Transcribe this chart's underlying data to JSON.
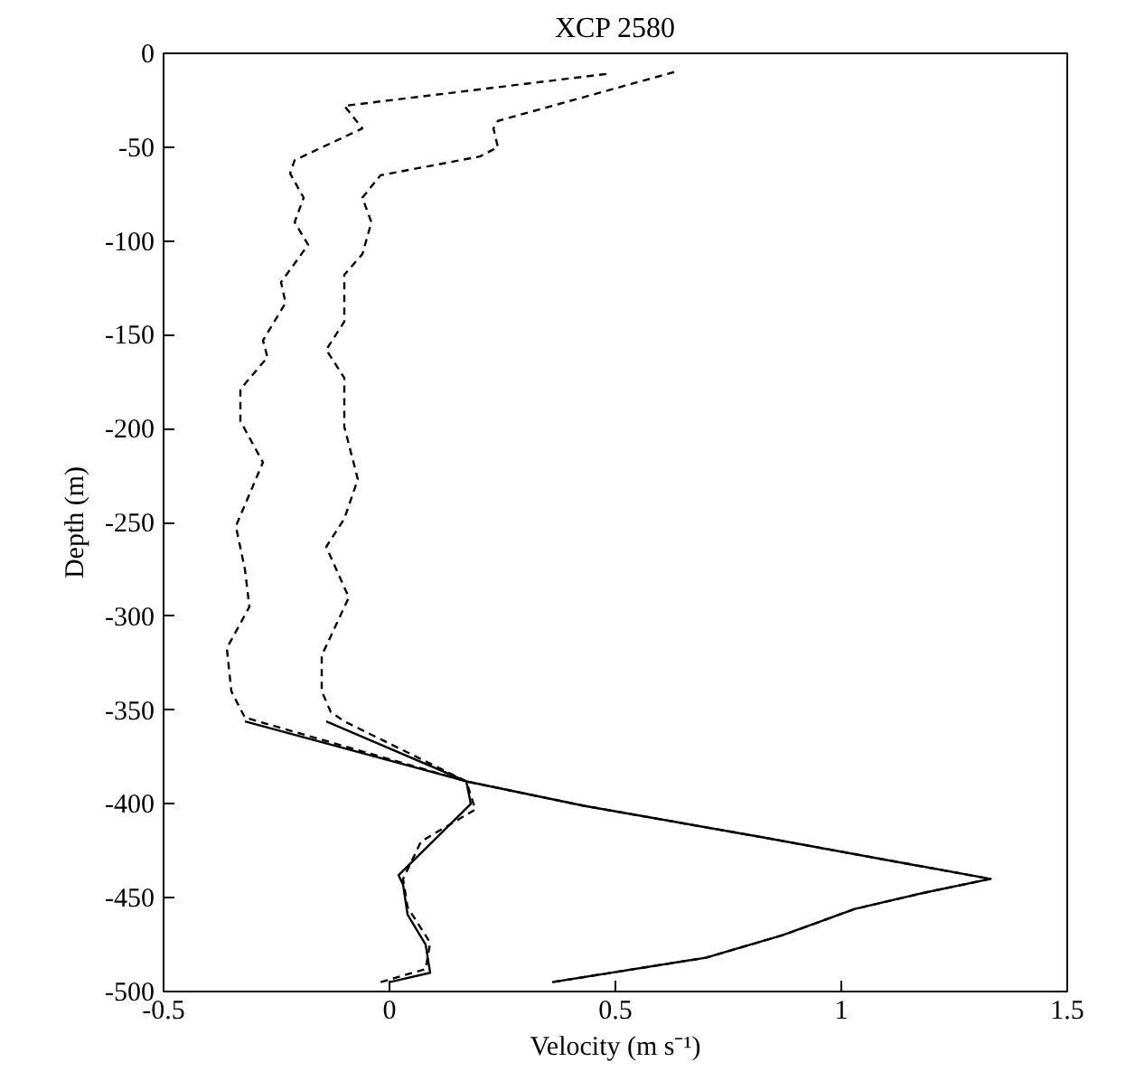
{
  "chart_data": {
    "type": "line",
    "title": "XCP 2580",
    "xlabel": "Velocity (m s⁻¹)",
    "ylabel": "Depth (m)",
    "xlim": [
      -0.5,
      1.5
    ],
    "xticks": [
      -0.5,
      0,
      0.5,
      1,
      1.5
    ],
    "ylim": [
      -500,
      0
    ],
    "yticks": [
      0,
      -50,
      -100,
      -150,
      -200,
      -250,
      -300,
      -350,
      -400,
      -450,
      -500
    ],
    "grid": false,
    "series": [
      {
        "color": "#000000",
        "line_style": "dashed",
        "x": [
          0.48,
          -0.1,
          -0.06,
          -0.21,
          -0.22,
          -0.19,
          -0.21,
          -0.18,
          -0.24,
          -0.23,
          -0.28,
          -0.27,
          -0.33,
          -0.33,
          -0.28,
          -0.34,
          -0.32,
          -0.31,
          -0.36,
          -0.35,
          -0.32,
          0.17,
          0.43,
          0.83,
          1.33,
          1.19,
          1.03,
          0.87,
          0.7,
          0.36
        ],
        "values": [
          -11,
          -28,
          -40,
          -57,
          -64,
          -77,
          -90,
          -102,
          -122,
          -133,
          -153,
          -162,
          -179,
          -196,
          -218,
          -252,
          -275,
          -295,
          -317,
          -340,
          -354,
          -388,
          -401,
          -418,
          -440,
          -447,
          -456,
          -470,
          -482,
          -495
        ]
      },
      {
        "color": "#000000",
        "line_style": "dashed",
        "x": [
          0.63,
          0.24,
          0.23,
          0.24,
          0.2,
          -0.02,
          -0.06,
          -0.04,
          -0.06,
          -0.1,
          -0.1,
          -0.14,
          -0.1,
          -0.1,
          -0.07,
          -0.1,
          -0.14,
          -0.09,
          -0.15,
          -0.15,
          -0.13,
          -0.1,
          0.17,
          0.19,
          0.07,
          0.03,
          0.04,
          0.09,
          0.08,
          -0.02
        ],
        "values": [
          -10,
          -36,
          -40,
          -50,
          -55,
          -65,
          -77,
          -90,
          -107,
          -118,
          -143,
          -158,
          -173,
          -199,
          -227,
          -248,
          -263,
          -290,
          -321,
          -340,
          -351,
          -356,
          -388,
          -403,
          -420,
          -440,
          -455,
          -474,
          -488,
          -495
        ]
      },
      {
        "color": "#000000",
        "line_style": "solid",
        "x": [
          -0.32,
          0.17,
          0.43,
          0.83,
          1.33,
          1.19,
          1.03,
          0.87,
          0.7,
          0.36
        ],
        "values": [
          -356,
          -388,
          -401,
          -418,
          -440,
          -447,
          -456,
          -470,
          -482,
          -495
        ]
      },
      {
        "color": "#000000",
        "line_style": "solid",
        "x": [
          -0.14,
          0.17,
          0.18,
          0.02,
          0.03,
          0.04,
          0.08,
          0.09,
          0.0
        ],
        "values": [
          -356,
          -388,
          -400,
          -438,
          -443,
          -459,
          -475,
          -490,
          -495
        ]
      }
    ]
  }
}
